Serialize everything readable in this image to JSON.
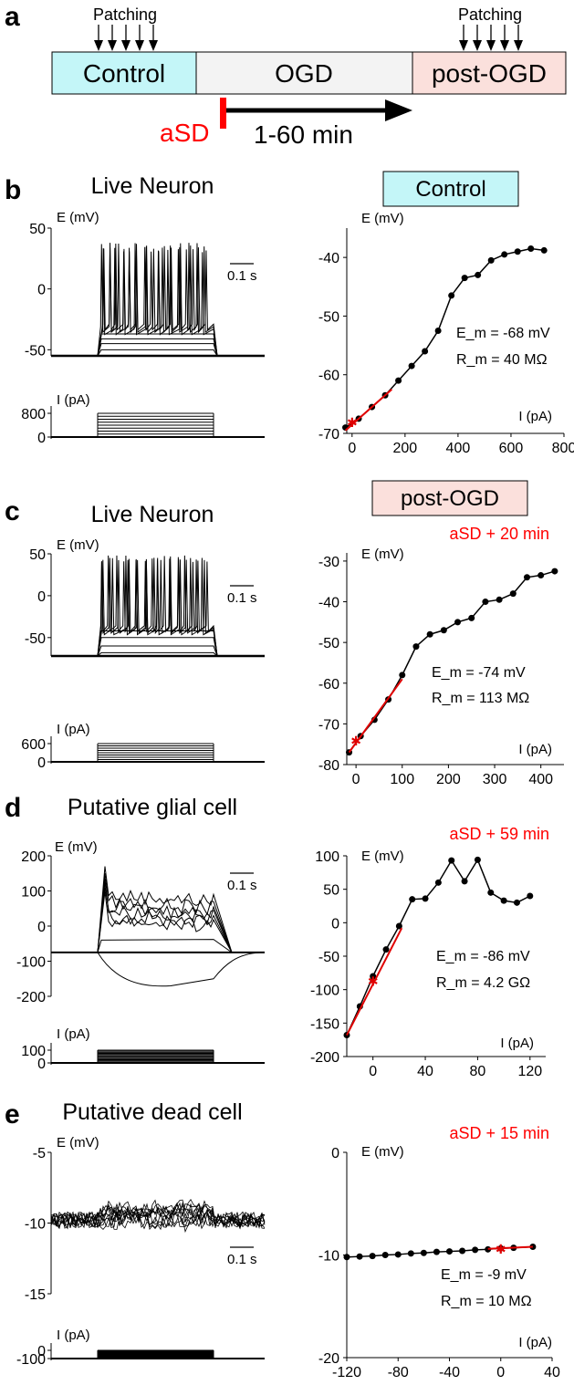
{
  "panel_a": {
    "letter": "a",
    "boxes": [
      {
        "label": "Control",
        "color": "#c4f6f8"
      },
      {
        "label": "OGD",
        "color": "#f3f3f3"
      },
      {
        "label": "post-OGD",
        "color": "#fbe0dc"
      }
    ],
    "patching_label": "Patching",
    "asd_label": "aSD",
    "time_label": "1-60 min",
    "colors": {
      "red": "#ff0000"
    }
  },
  "panels": [
    {
      "letter": "b",
      "title": "Live Neuron",
      "tag": "Control",
      "tag_color": "#c4f6f8",
      "subtitle": "",
      "trace": {
        "ylabel": "E (mV)",
        "yticks": [
          "50",
          "0",
          "-50"
        ],
        "ytick_values": [
          50,
          0,
          -50
        ],
        "rest": -55,
        "min_level": -55,
        "sub_levels": [
          -50,
          -45,
          -41,
          -37
        ],
        "spike_top": 38,
        "spike_trough": -33,
        "scale_label": "0.1 s"
      },
      "current": {
        "ylabel": "I (pA)",
        "yticks": [
          "800",
          "0"
        ],
        "ytick_values": [
          800,
          0
        ],
        "steps": 8
      },
      "chart_data": {
        "type": "line",
        "xlabel": "I (pA)",
        "ylabel": "E (mV)",
        "xlim": [
          -20,
          800
        ],
        "ylim": [
          -70,
          -35
        ],
        "xticks": [
          0,
          200,
          400,
          600,
          800
        ],
        "yticks": [
          -40,
          -50,
          -60,
          -70
        ],
        "x": [
          -25,
          25,
          75,
          125,
          175,
          225,
          275,
          325,
          375,
          425,
          475,
          525,
          575,
          625,
          675,
          725
        ],
        "y": [
          -69,
          -67.5,
          -65.5,
          -63.5,
          -61,
          -58.5,
          -56,
          -52.5,
          -46.5,
          -43.5,
          -43,
          -40.5,
          -39.5,
          -39,
          -38.5,
          -38.8
        ],
        "fit_x": [
          -25,
          150
        ],
        "fit_y": [
          -69.5,
          -62.5
        ],
        "rest_marker": [
          0,
          -68
        ],
        "annotation_em": "E_m = -68 mV",
        "annotation_rm": "R_m = 40 MΩ"
      }
    },
    {
      "letter": "c",
      "title": "Live Neuron",
      "tag": "post-OGD",
      "tag_color": "#fbe0dc",
      "subtitle": "aSD + 20 min",
      "trace": {
        "ylabel": "E (mV)",
        "yticks": [
          "50",
          "0",
          "-50"
        ],
        "ytick_values": [
          50,
          0,
          -50
        ],
        "rest": -72,
        "min_level": -72,
        "sub_levels": [
          -68,
          -60,
          -50,
          -42
        ],
        "spike_top": 48,
        "spike_trough": -40,
        "scale_label": "0.1 s"
      },
      "current": {
        "ylabel": "I (pA)",
        "yticks": [
          "600",
          "0"
        ],
        "ytick_values": [
          600,
          0
        ],
        "steps": 8
      },
      "chart_data": {
        "type": "line",
        "xlabel": "I (pA)",
        "ylabel": "E (mV)",
        "xlim": [
          -20,
          450
        ],
        "ylim": [
          -80,
          -28
        ],
        "xticks": [
          0,
          100,
          200,
          300,
          400
        ],
        "yticks": [
          -30,
          -40,
          -50,
          -60,
          -70,
          -80
        ],
        "x": [
          -15,
          10,
          40,
          70,
          100,
          130,
          160,
          190,
          220,
          250,
          280,
          310,
          340,
          370,
          400,
          430
        ],
        "y": [
          -77,
          -73,
          -69,
          -64,
          -58,
          -51,
          -48,
          -47,
          -45,
          -44,
          -40,
          -39.5,
          -38,
          -34,
          -33.5,
          -32.5
        ],
        "fit_x": [
          -15,
          100
        ],
        "fit_y": [
          -77,
          -59
        ],
        "rest_marker": [
          0,
          -74
        ],
        "annotation_em": "E_m = -74 mV",
        "annotation_rm": "R_m = 113 MΩ"
      }
    },
    {
      "letter": "d",
      "title": "Putative glial cell",
      "tag": "",
      "tag_color": "",
      "subtitle": "aSD + 59 min",
      "trace": {
        "ylabel": "E (mV)",
        "yticks": [
          "200",
          "100",
          "0",
          "-100",
          "-200"
        ],
        "ytick_values": [
          200,
          100,
          0,
          -100,
          -200
        ],
        "rest": -75,
        "scale_label": "0.1 s"
      },
      "current": {
        "ylabel": "I (pA)",
        "yticks": [
          "100",
          "0"
        ],
        "ytick_values": [
          100,
          0
        ],
        "steps": 12
      },
      "chart_data": {
        "type": "line",
        "xlabel": "I (pA)",
        "ylabel": "E (mV)",
        "xlim": [
          -20,
          132
        ],
        "ylim": [
          -200,
          100
        ],
        "xticks": [
          0,
          40,
          80,
          120
        ],
        "yticks": [
          100,
          50,
          0,
          -50,
          -100,
          -150,
          -200
        ],
        "x": [
          -20,
          -10,
          0,
          10,
          20,
          30,
          40,
          50,
          60,
          70,
          80,
          90,
          100,
          110,
          120
        ],
        "y": [
          -168,
          -125,
          -80,
          -40,
          -5,
          35,
          36,
          60,
          93,
          62,
          94,
          45,
          33,
          30,
          40
        ],
        "fit_x": [
          -20,
          22
        ],
        "fit_y": [
          -168,
          -8
        ],
        "rest_marker": [
          0,
          -86
        ],
        "annotation_em": "E_m = -86 mV",
        "annotation_rm": "R_m = 4.2 GΩ"
      }
    },
    {
      "letter": "e",
      "title": "Putative dead cell",
      "tag": "",
      "tag_color": "",
      "subtitle": "aSD + 15 min",
      "trace": {
        "ylabel": "E (mV)",
        "yticks": [
          "-5",
          "-10",
          "-15"
        ],
        "ytick_values": [
          -5,
          -10,
          -15
        ],
        "rest": -9.8,
        "scale_label": "0.1 s"
      },
      "current": {
        "ylabel": "I (pA)",
        "yticks": [
          "0",
          "-100"
        ],
        "ytick_values": [
          0,
          -100
        ],
        "steps": 12
      },
      "chart_data": {
        "type": "line",
        "xlabel": "I (pA)",
        "ylabel": "E (mV)",
        "xlim": [
          -120,
          40
        ],
        "ylim": [
          -20,
          0
        ],
        "xticks": [
          -120,
          -80,
          -40,
          0,
          40
        ],
        "yticks": [
          0,
          -10,
          -20
        ],
        "x": [
          -120,
          -110,
          -100,
          -90,
          -80,
          -70,
          -60,
          -50,
          -40,
          -30,
          -20,
          -10,
          0,
          10,
          25
        ],
        "y": [
          -10.2,
          -10.15,
          -10.1,
          -10.0,
          -9.95,
          -9.85,
          -9.8,
          -9.7,
          -9.65,
          -9.6,
          -9.5,
          -9.45,
          -9.35,
          -9.3,
          -9.2
        ],
        "fit_x": [
          -10,
          25
        ],
        "fit_y": [
          -9.4,
          -9.2
        ],
        "rest_marker": [
          0,
          -9.35
        ],
        "annotation_em": "E_m = -9 mV",
        "annotation_rm": "R_m = 10 MΩ"
      }
    }
  ]
}
